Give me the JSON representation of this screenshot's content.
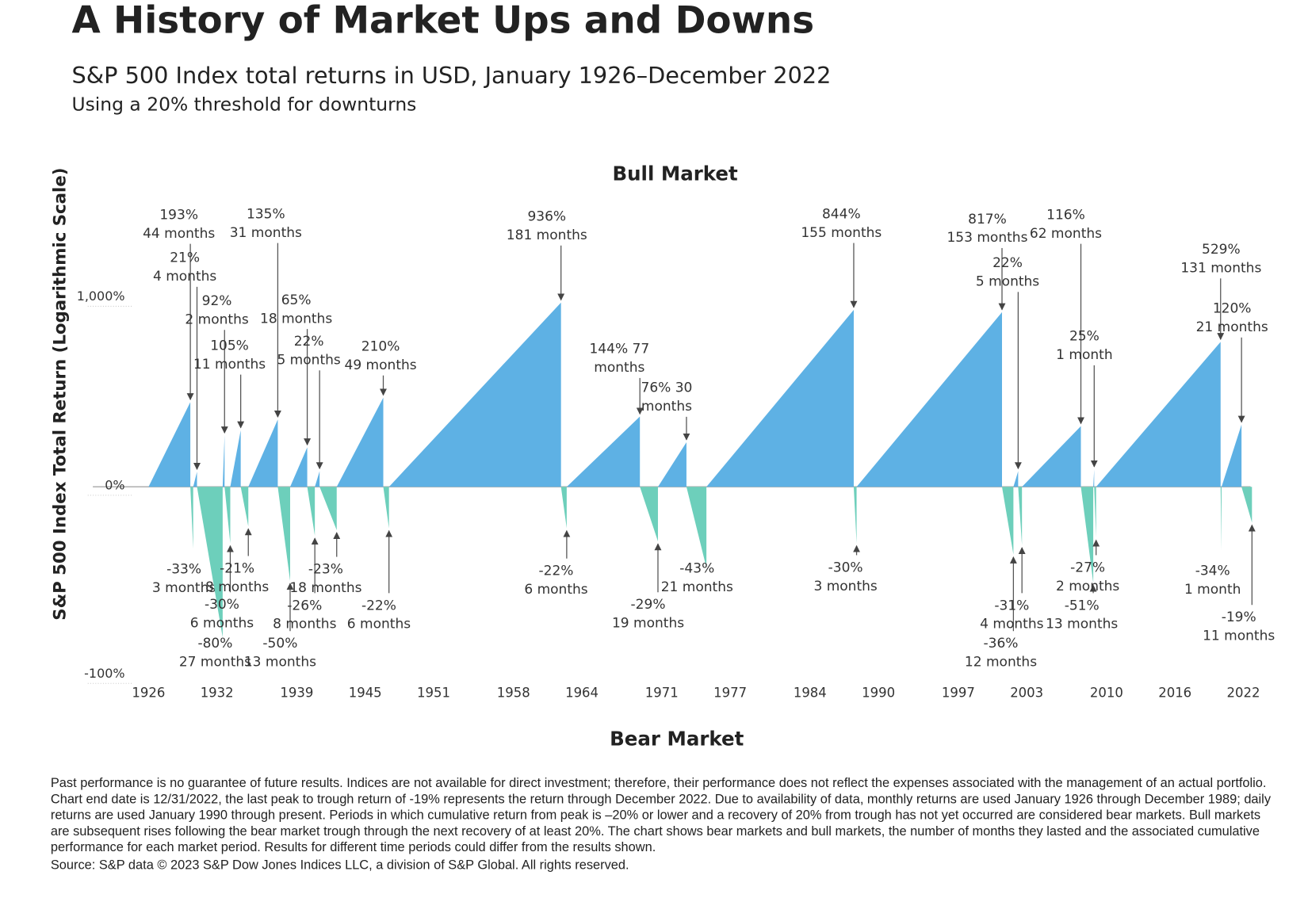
{
  "chart_data": {
    "type": "market-cycles",
    "title": "A History of Market Ups and Downs",
    "subtitle": "S&P 500 Index total returns in USD, January 1926–December 2022",
    "subtitle2": "Using a 20% threshold for downturns",
    "ylabel": "S&P 500 Index Total Return (Logarithmic Scale)",
    "top_label": "Bull Market",
    "bottom_label": "Bear Market",
    "up_color": "#5eb1e4",
    "down_color": "#6dcfbb",
    "log_scale": true,
    "xlim": [
      1926,
      2023
    ],
    "xticks": [
      1926,
      1932,
      1939,
      1945,
      1951,
      1958,
      1964,
      1971,
      1977,
      1984,
      1990,
      1997,
      2003,
      2010,
      2016,
      2022
    ],
    "ylim": [
      -100,
      1000
    ],
    "yticks": [
      {
        "value": 1000,
        "label": "1,000%"
      },
      {
        "value": 0,
        "label": "0%"
      },
      {
        "value": -100,
        "label": "-100%"
      }
    ],
    "values": [
      193,
      -33,
      21,
      -80,
      92,
      -30,
      105,
      -21,
      135,
      -50,
      65,
      -26,
      22,
      -23,
      210,
      -22,
      936,
      -22,
      144,
      -29,
      76,
      -43,
      844,
      -30,
      817,
      -36,
      22,
      -31,
      116,
      -51,
      25,
      -27,
      529,
      -34,
      120,
      -19
    ],
    "value_labels": [
      "193%",
      "-33%",
      "21%",
      "-80%",
      "92%",
      "-30%",
      "105%",
      "-21%",
      "135%",
      "-50%",
      "65%",
      "-26%",
      "22%",
      "-23%",
      "210%",
      "-22%",
      "936%",
      "-22%",
      "144% 77",
      "-29%",
      "76% 30",
      "-43%",
      "844%",
      "-30%",
      "817%",
      "-36%",
      "22%",
      "-31%",
      "116%",
      "-51%",
      "25%",
      "-27%",
      "529%",
      "-34%",
      "120%",
      "-19%"
    ],
    "durations": [
      44,
      3,
      4,
      27,
      2,
      6,
      11,
      8,
      31,
      13,
      18,
      8,
      5,
      18,
      49,
      6,
      181,
      6,
      77,
      19,
      30,
      21,
      155,
      3,
      153,
      12,
      5,
      4,
      62,
      13,
      1,
      2,
      131,
      1,
      21,
      11
    ],
    "duration_labels": [
      "44 months",
      "3 months",
      "4 months",
      "27 months",
      "2 months",
      "6 months",
      "11 months",
      "8 months",
      "31 months",
      "13 months",
      "18 months",
      "8 months",
      "5 months",
      "18 months",
      "49 months",
      "6 months",
      "181 months",
      "6 months",
      "months",
      "19 months",
      "months",
      "21 months",
      "155 months",
      "3 months",
      "153 months",
      "12 months",
      "5 months",
      "4 months",
      "62 months",
      "13 months",
      "1 month",
      "2 months",
      "131 months",
      "1 month",
      "21 months",
      "11 months"
    ],
    "note": "Past performance is no guarantee of future results. Indices are not available for direct investment; therefore, their performance does not reflect the expenses associated with the management of an actual portfolio. Chart end date is 12/31/2022, the last peak to trough return of -19% represents the return through December 2022. Due to availability of data, monthly returns are used January 1926 through December 1989; daily returns are used January 1990 through present. Periods in which cumulative return from peak is –20% or lower and a recovery of 20% from trough has not yet occurred are considered bear markets. Bull markets are subsequent rises following the bear market trough through the next recovery of at least 20%. The chart shows bear markets and bull markets, the number of months they lasted and the associated cumulative performance for each market period. Results for different time periods could differ from the results shown.",
    "source": "Source: S&P data © 2023 S&P Dow Jones Indices LLC, a division of S&P Global. All rights reserved."
  }
}
